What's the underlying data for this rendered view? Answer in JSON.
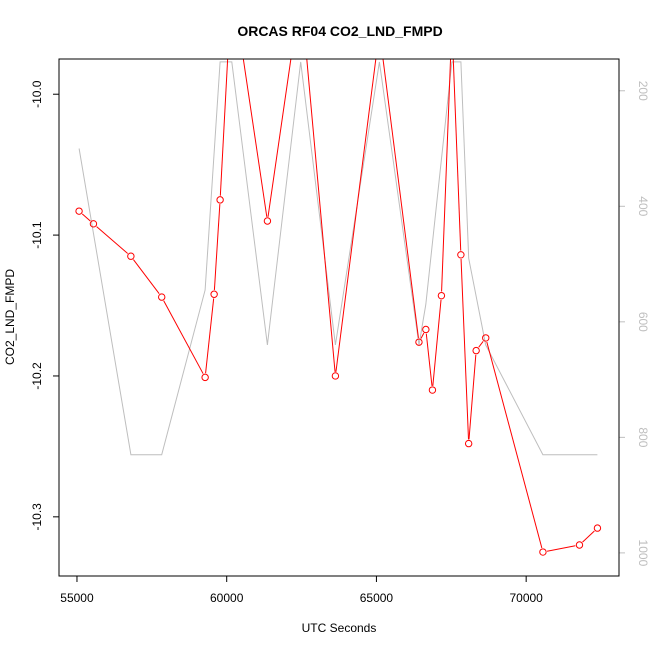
{
  "chart_data": {
    "type": "line",
    "title": "ORCAS RF04 CO2_LND_FMPD",
    "xlabel": "UTC Seconds",
    "ylabel": "CO2_LND_FMPD",
    "xlim": [
      54400,
      73100
    ],
    "ylim": [
      -10.342,
      -9.975
    ],
    "y2lim": [
      1040,
      145
    ],
    "x_ticks": [
      55000,
      60000,
      65000,
      70000
    ],
    "x_tick_labels": [
      "55000",
      "60000",
      "65000",
      "70000"
    ],
    "y_ticks": [
      -10.0,
      -10.1,
      -10.2,
      -10.3
    ],
    "y_tick_labels": [
      "-10.0",
      "-10.1",
      "-10.2",
      "-10.3"
    ],
    "y2_ticks": [
      200,
      400,
      600,
      800,
      1000
    ],
    "y2_tick_labels": [
      "200",
      "400",
      "600",
      "800",
      "1000"
    ],
    "grid": false,
    "series": [
      {
        "color": "#ff0000",
        "axis": "left",
        "markers": "open-circle",
        "x": [
          55070,
          55550,
          56800,
          57830,
          59280,
          59580,
          59780,
          60170,
          61360,
          62470,
          63630,
          65100,
          66420,
          66650,
          66870,
          67170,
          67520,
          67820,
          68080,
          68330,
          68650,
          70560,
          71780,
          72380
        ],
        "y": [
          -10.083,
          -10.092,
          -10.115,
          -10.144,
          -10.201,
          -10.142,
          -10.075,
          -9.92,
          -10.09,
          -9.927,
          -10.2,
          -9.955,
          -10.176,
          -10.167,
          -10.21,
          -10.143,
          -9.95,
          -10.114,
          -10.248,
          -10.182,
          -10.173,
          -10.325,
          -10.32,
          -10.308
        ]
      },
      {
        "color": "#bebebe",
        "axis": "right",
        "markers": "none",
        "x": [
          55070,
          56800,
          57830,
          59280,
          59780,
          60170,
          61360,
          62470,
          63630,
          65100,
          66420,
          66650,
          67520,
          67820,
          68080,
          68650,
          70560,
          72380
        ],
        "y": [
          300,
          830,
          830,
          545,
          150,
          150,
          640,
          150,
          640,
          150,
          640,
          570,
          150,
          150,
          490,
          640,
          830,
          830
        ]
      }
    ]
  }
}
